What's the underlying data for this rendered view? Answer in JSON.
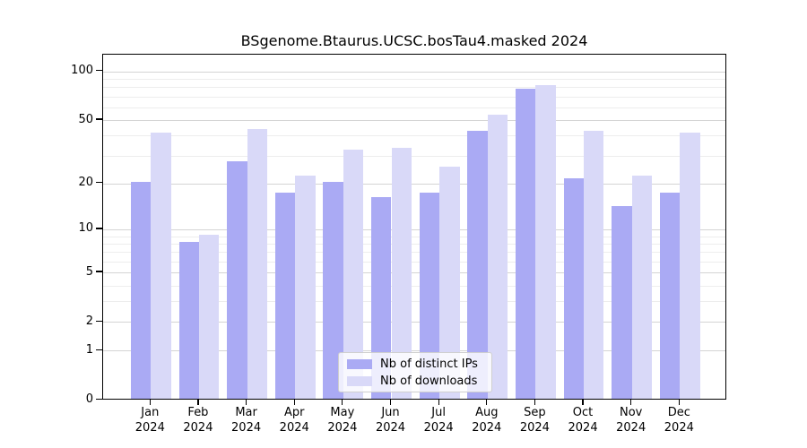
{
  "chart_data": {
    "type": "bar",
    "title": "BSgenome.Btaurus.UCSC.bosTau4.masked 2024",
    "year": "2024",
    "categories": [
      "Jan 2024",
      "Feb 2024",
      "Mar 2024",
      "Apr 2024",
      "May 2024",
      "Jun 2024",
      "Jul 2024",
      "Aug 2024",
      "Sep 2024",
      "Oct 2024",
      "Nov 2024",
      "Dec 2024"
    ],
    "months": [
      "Jan",
      "Feb",
      "Mar",
      "Apr",
      "May",
      "Jun",
      "Jul",
      "Aug",
      "Sep",
      "Oct",
      "Nov",
      "Dec"
    ],
    "series": [
      {
        "name": "Nb of distinct IPs",
        "color": "#aaaaf4",
        "values": [
          20,
          8,
          27,
          17,
          20,
          16,
          17,
          42,
          77,
          21,
          14,
          17
        ]
      },
      {
        "name": "Nb of downloads",
        "color": "#d9d9f8",
        "values": [
          41,
          9,
          43,
          22,
          32,
          33,
          25,
          53,
          81,
          42,
          22,
          41
        ]
      }
    ],
    "y_scale": "log1p",
    "y_ticks": [
      0,
      1,
      2,
      5,
      10,
      20,
      50,
      100
    ],
    "y_minor_gridlines": [
      3,
      4,
      6,
      7,
      8,
      9,
      30,
      40,
      60,
      70,
      80,
      90
    ],
    "ylim": [
      0,
      126
    ],
    "grid": true,
    "legend_position": "lower center",
    "xlabel": "",
    "ylabel": ""
  },
  "colors": {
    "major_grid": "#d4d4d4",
    "minor_grid": "#ededed",
    "axis": "#000000",
    "background": "#ffffff"
  }
}
